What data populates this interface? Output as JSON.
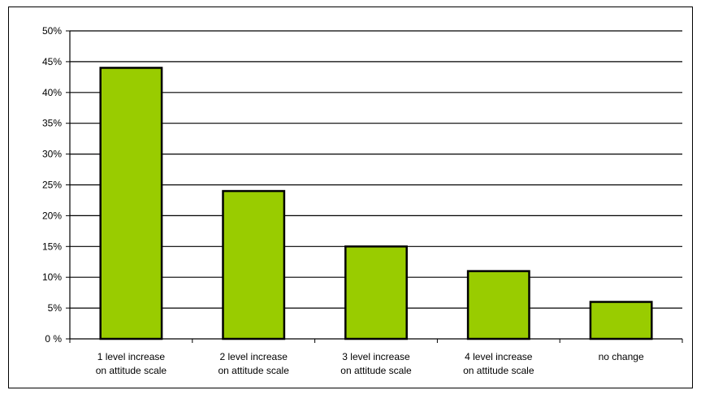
{
  "chart_data": {
    "type": "bar",
    "categories": [
      [
        "1 level increase",
        "on attitude scale"
      ],
      [
        "2 level increase",
        "on attitude scale"
      ],
      [
        "3 level increase",
        "on attitude scale"
      ],
      [
        "4 level increase",
        "on attitude scale"
      ],
      [
        "no change"
      ]
    ],
    "values": [
      44,
      24,
      15,
      11,
      6
    ],
    "y_ticks": [
      "0 %",
      "5%",
      "10%",
      "15%",
      "20%",
      "25%",
      "30%",
      "35%",
      "40%",
      "45%",
      "50%"
    ],
    "ylim": [
      0,
      50
    ],
    "grid": true,
    "legend": "none",
    "colors": {
      "bar_fill": "#99cc00",
      "bar_stroke": "#000000",
      "grid": "#000000",
      "axis": "#000000",
      "background": "#ffffff"
    }
  }
}
